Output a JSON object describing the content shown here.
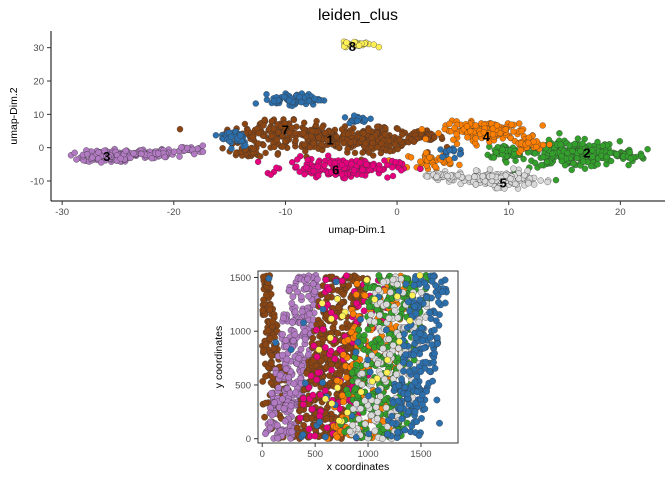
{
  "chart_data": [
    {
      "type": "scatter",
      "title": "leiden_clus",
      "xlabel": "umap-Dim.1",
      "ylabel": "umap-Dim.2",
      "xlim": [
        -31,
        24
      ],
      "ylim": [
        -16,
        35
      ],
      "xticks": [
        -30,
        -20,
        -10,
        0,
        10,
        20
      ],
      "yticks": [
        -10,
        0,
        10,
        20,
        30
      ],
      "grid": false,
      "legend": "none",
      "clusters": [
        {
          "id": "1",
          "color": "#8b4513",
          "label_pos": [
            -6,
            2
          ],
          "regions": [
            {
              "cx": -7,
              "cy": 3,
              "sx": 6.5,
              "sy": 4,
              "n": 230
            },
            {
              "cx": -1.5,
              "cy": 2,
              "sx": 3,
              "sy": 3,
              "n": 80
            },
            {
              "cx": 2,
              "cy": 3,
              "sx": 2,
              "sy": 2,
              "n": 40
            }
          ]
        },
        {
          "id": "2",
          "color": "#33a02c",
          "label_pos": [
            17,
            -2
          ],
          "regions": [
            {
              "cx": 15.5,
              "cy": -2,
              "sx": 4,
              "sy": 3.5,
              "n": 240
            },
            {
              "cx": 20.5,
              "cy": -2.5,
              "sx": 1.5,
              "sy": 1.5,
              "n": 40
            },
            {
              "cx": 10,
              "cy": -1,
              "sx": 2,
              "sy": 2.2,
              "n": 40
            }
          ]
        },
        {
          "id": "3",
          "color": "#b27ac2",
          "label_pos": [
            -26,
            -3
          ],
          "regions": [
            {
              "cx": -26,
              "cy": -2.5,
              "sx": 2,
              "sy": 1.6,
              "n": 160
            },
            {
              "cx": -22,
              "cy": -2,
              "sx": 2,
              "sy": 1.3,
              "n": 70
            },
            {
              "cx": -18.5,
              "cy": -0.5,
              "sx": 1.2,
              "sy": 1,
              "n": 25
            }
          ]
        },
        {
          "id": "4",
          "color": "#ff7f00",
          "label_pos": [
            8,
            3
          ],
          "regions": [
            {
              "cx": 8,
              "cy": 5,
              "sx": 3.5,
              "sy": 2.5,
              "n": 150
            },
            {
              "cx": 3,
              "cy": -4,
              "sx": 1.8,
              "sy": 2,
              "n": 40
            },
            {
              "cx": 12,
              "cy": 1,
              "sx": 1.5,
              "sy": 1.5,
              "n": 30
            }
          ]
        },
        {
          "id": "5",
          "color": "#d9d9d9",
          "label_pos": [
            9.5,
            -11
          ],
          "regions": [
            {
              "cx": 9,
              "cy": -9.5,
              "sx": 3,
              "sy": 2,
              "n": 160
            },
            {
              "cx": 4,
              "cy": -8.5,
              "sx": 1.8,
              "sy": 1,
              "n": 40
            }
          ]
        },
        {
          "id": "6",
          "color": "#e6007e",
          "label_pos": [
            -5.5,
            -7
          ],
          "regions": [
            {
              "cx": -5,
              "cy": -6,
              "sx": 4.5,
              "sy": 2.5,
              "n": 160
            }
          ]
        },
        {
          "id": "7",
          "color": "#8b4513",
          "label_pos": [
            -10,
            5
          ],
          "regions": [
            {
              "cx": -12,
              "cy": 5,
              "sx": 2.5,
              "sy": 3,
              "n": 60
            },
            {
              "cx": -13.5,
              "cy": -1.5,
              "sx": 1.5,
              "sy": 1.5,
              "n": 30
            }
          ]
        },
        {
          "id": "blue",
          "color": "#2c6fad",
          "label_pos": null,
          "regions": [
            {
              "cx": -9,
              "cy": 14.5,
              "sx": 2,
              "sy": 1.5,
              "n": 90
            },
            {
              "cx": -14.5,
              "cy": 3,
              "sx": 1.2,
              "sy": 2.5,
              "n": 40
            },
            {
              "cx": -3.5,
              "cy": 8.5,
              "sx": 1.2,
              "sy": 1.2,
              "n": 20
            },
            {
              "cx": 5,
              "cy": -1,
              "sx": 1,
              "sy": 1.5,
              "n": 15
            }
          ]
        },
        {
          "id": "8",
          "color": "#fff056",
          "label_pos": [
            -4,
            30
          ],
          "regions": [
            {
              "cx": -3.5,
              "cy": 31,
              "sx": 1.2,
              "sy": 0.7,
              "n": 40
            }
          ]
        }
      ]
    },
    {
      "type": "scatter",
      "xlabel": "x coordinates",
      "ylabel": "y coordinates",
      "xlim": [
        -40,
        1850
      ],
      "ylim": [
        -40,
        1560
      ],
      "xticks": [
        0,
        500,
        1000,
        1500
      ],
      "yticks": [
        0,
        500,
        1000,
        1500
      ],
      "grid": false,
      "legend": "none",
      "bands": [
        {
          "color": "#8b4513",
          "xmin_at_bottom": 0,
          "xmax_at_bottom": 320,
          "xmin_at_top": 0,
          "xmax_at_top": 70,
          "n": 140
        },
        {
          "color": "#b27ac2",
          "xmin_at_bottom": 20,
          "xmax_at_bottom": 320,
          "xmin_at_top": 260,
          "xmax_at_top": 560,
          "n": 260
        },
        {
          "color": "#8b4513",
          "xmin_at_bottom": 300,
          "xmax_at_bottom": 760,
          "xmin_at_top": 580,
          "xmax_at_top": 1000,
          "n": 380
        },
        {
          "color": "#e6007e",
          "xmin_at_bottom": 300,
          "xmax_at_bottom": 900,
          "xmin_at_top": 600,
          "xmax_at_top": 1250,
          "n": 110
        },
        {
          "color": "#ff7f00",
          "xmin_at_bottom": 600,
          "xmax_at_bottom": 1200,
          "xmin_at_top": 900,
          "xmax_at_top": 1400,
          "n": 160
        },
        {
          "color": "#33a02c",
          "xmin_at_bottom": 700,
          "xmax_at_bottom": 1350,
          "xmin_at_top": 1000,
          "xmax_at_top": 1640,
          "n": 330
        },
        {
          "color": "#d9d9d9",
          "xmin_at_bottom": 800,
          "xmax_at_bottom": 1350,
          "xmin_at_top": 1100,
          "xmax_at_top": 1650,
          "n": 170
        },
        {
          "color": "#2c6fad",
          "xmin_at_bottom": 1150,
          "xmax_at_bottom": 1500,
          "xmin_at_top": 1450,
          "xmax_at_top": 1780,
          "n": 190
        },
        {
          "color": "#2c6fad",
          "xmin_at_bottom": 0,
          "xmax_at_bottom": 1750,
          "xmin_at_top": 0,
          "xmax_at_top": 1750,
          "n": 40
        },
        {
          "color": "#fff056",
          "xmin_at_bottom": 400,
          "xmax_at_bottom": 1200,
          "xmin_at_top": 600,
          "xmax_at_top": 1500,
          "n": 25
        }
      ]
    }
  ]
}
